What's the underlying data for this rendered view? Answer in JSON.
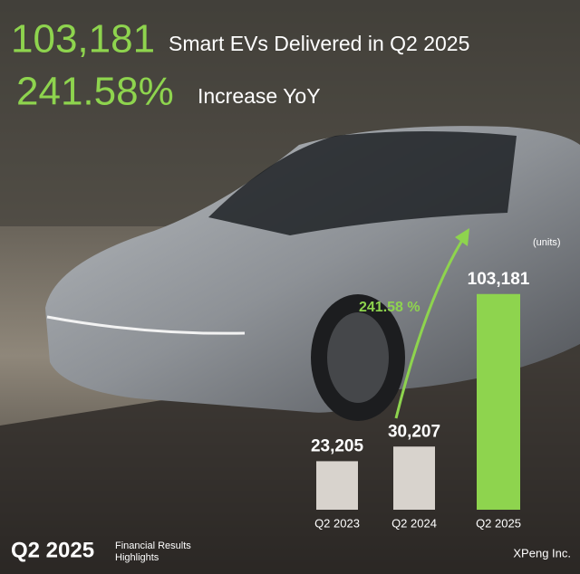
{
  "chart_data": {
    "type": "bar",
    "headlines": [
      {
        "figure": "103,181",
        "text": "Smart EVs Delivered in Q2 2025"
      },
      {
        "figure": "241.58%",
        "text": "Increase YoY"
      }
    ],
    "unit_label": "(units)",
    "annotation": "241.58 %",
    "categories": [
      "Q2 2023",
      "Q2 2024",
      "Q2 2025"
    ],
    "values": [
      23205,
      30207,
      103181
    ],
    "value_labels": [
      "23,205",
      "30,207",
      "103,181"
    ],
    "colors": [
      "#d8d3cd",
      "#d8d3cd",
      "#8ed44e"
    ],
    "ylim": [
      0,
      110000
    ],
    "footer": {
      "period": "Q2 2025",
      "caption_lines": [
        "Financial Results",
        "Highlights"
      ],
      "company": "XPeng Inc."
    }
  }
}
